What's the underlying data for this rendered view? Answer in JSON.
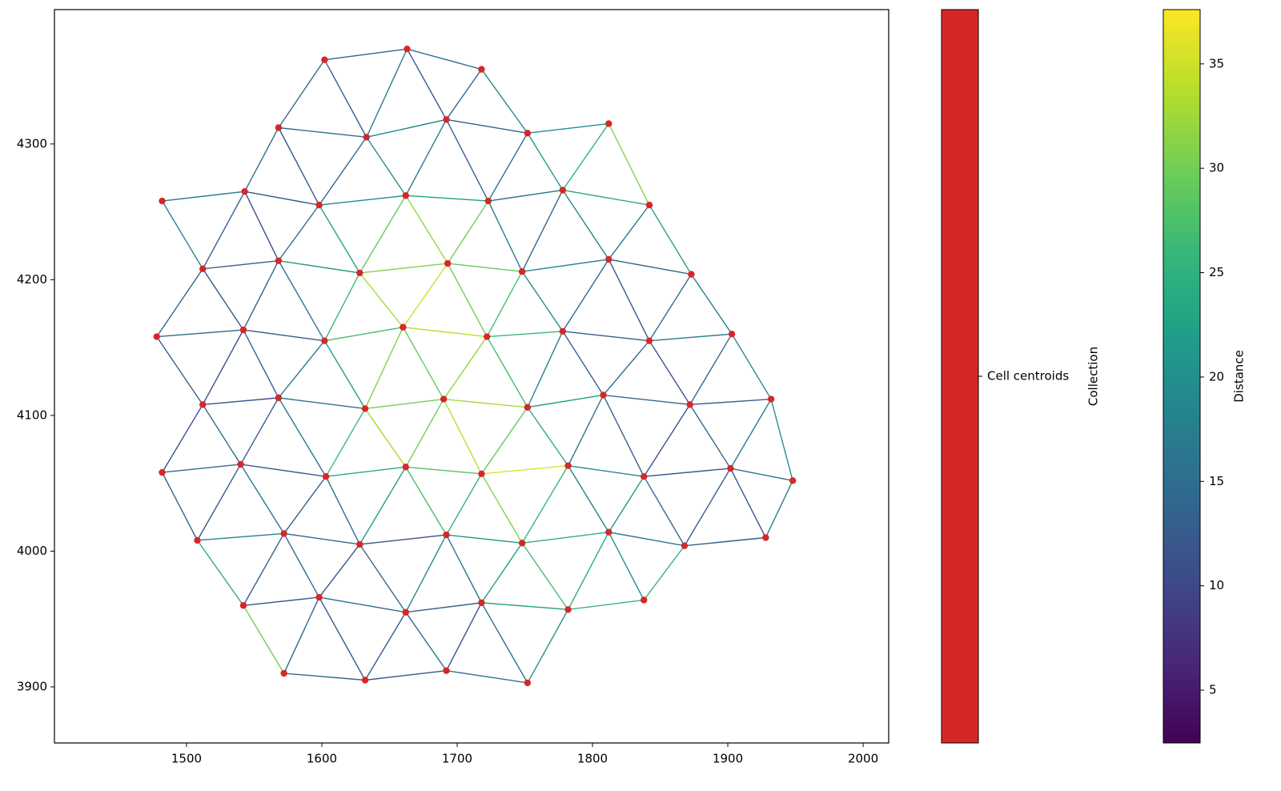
{
  "chart_data": {
    "type": "network",
    "node_color": "#d62728",
    "colormap": "viridis",
    "x": [
      1602,
      1663,
      1718,
      1568,
      1633,
      1692,
      1752,
      1812,
      1482,
      1543,
      1598,
      1662,
      1723,
      1778,
      1842,
      1512,
      1568,
      1628,
      1693,
      1748,
      1812,
      1873,
      1478,
      1542,
      1602,
      1660,
      1722,
      1778,
      1842,
      1903,
      1512,
      1568,
      1632,
      1690,
      1752,
      1808,
      1872,
      1932,
      1482,
      1540,
      1603,
      1662,
      1718,
      1782,
      1838,
      1902,
      1948,
      1508,
      1572,
      1628,
      1692,
      1748,
      1812,
      1868,
      1928,
      1542,
      1598,
      1662,
      1718,
      1782,
      1838,
      1572,
      1632,
      1692,
      1752
    ],
    "y": [
      4362,
      4370,
      4355,
      4312,
      4305,
      4318,
      4308,
      4315,
      4258,
      4265,
      4255,
      4262,
      4258,
      4266,
      4255,
      4208,
      4214,
      4205,
      4212,
      4206,
      4215,
      4204,
      4158,
      4163,
      4155,
      4165,
      4158,
      4162,
      4155,
      4160,
      4108,
      4113,
      4105,
      4112,
      4106,
      4115,
      4108,
      4112,
      4058,
      4064,
      4055,
      4062,
      4057,
      4063,
      4055,
      4061,
      4052,
      4008,
      4013,
      4005,
      4012,
      4006,
      4014,
      4004,
      4010,
      3960,
      3966,
      3955,
      3962,
      3957,
      3964,
      3910,
      3905,
      3912,
      3903
    ],
    "edges": [
      [
        0,
        1,
        14
      ],
      [
        1,
        2,
        16
      ],
      [
        3,
        4,
        15
      ],
      [
        4,
        5,
        18
      ],
      [
        5,
        6,
        13
      ],
      [
        6,
        7,
        20
      ],
      [
        8,
        9,
        17
      ],
      [
        9,
        10,
        12
      ],
      [
        10,
        11,
        19
      ],
      [
        11,
        12,
        22
      ],
      [
        12,
        13,
        16
      ],
      [
        13,
        14,
        24
      ],
      [
        15,
        16,
        13
      ],
      [
        16,
        17,
        21
      ],
      [
        17,
        18,
        31
      ],
      [
        18,
        19,
        29
      ],
      [
        19,
        20,
        18
      ],
      [
        20,
        21,
        15
      ],
      [
        22,
        23,
        14
      ],
      [
        23,
        24,
        12
      ],
      [
        24,
        25,
        27
      ],
      [
        25,
        26,
        34
      ],
      [
        26,
        27,
        26
      ],
      [
        27,
        28,
        13
      ],
      [
        28,
        29,
        17
      ],
      [
        30,
        31,
        11
      ],
      [
        31,
        32,
        16
      ],
      [
        32,
        33,
        30
      ],
      [
        33,
        34,
        33
      ],
      [
        34,
        35,
        22
      ],
      [
        35,
        36,
        14
      ],
      [
        36,
        37,
        12
      ],
      [
        38,
        39,
        15
      ],
      [
        39,
        40,
        13
      ],
      [
        40,
        41,
        24
      ],
      [
        41,
        42,
        28
      ],
      [
        42,
        43,
        36
      ],
      [
        43,
        44,
        19
      ],
      [
        44,
        45,
        12
      ],
      [
        45,
        46,
        16
      ],
      [
        47,
        48,
        18
      ],
      [
        48,
        49,
        14
      ],
      [
        49,
        50,
        11
      ],
      [
        50,
        51,
        21
      ],
      [
        51,
        52,
        25
      ],
      [
        52,
        53,
        17
      ],
      [
        53,
        54,
        13
      ],
      [
        55,
        56,
        12
      ],
      [
        56,
        57,
        15
      ],
      [
        57,
        58,
        13
      ],
      [
        58,
        59,
        23
      ],
      [
        59,
        60,
        26
      ],
      [
        61,
        62,
        14
      ],
      [
        62,
        63,
        12
      ],
      [
        63,
        64,
        16
      ],
      [
        0,
        3,
        15
      ],
      [
        0,
        4,
        13
      ],
      [
        1,
        4,
        17
      ],
      [
        1,
        5,
        12
      ],
      [
        2,
        5,
        14
      ],
      [
        2,
        6,
        19
      ],
      [
        3,
        9,
        16
      ],
      [
        3,
        10,
        12
      ],
      [
        4,
        10,
        14
      ],
      [
        4,
        11,
        20
      ],
      [
        5,
        11,
        17
      ],
      [
        5,
        12,
        13
      ],
      [
        6,
        12,
        15
      ],
      [
        6,
        13,
        22
      ],
      [
        7,
        13,
        25
      ],
      [
        7,
        14,
        31
      ],
      [
        8,
        15,
        18
      ],
      [
        9,
        15,
        13
      ],
      [
        9,
        16,
        11
      ],
      [
        10,
        16,
        15
      ],
      [
        10,
        17,
        23
      ],
      [
        11,
        17,
        29
      ],
      [
        11,
        18,
        32
      ],
      [
        12,
        18,
        30
      ],
      [
        12,
        19,
        17
      ],
      [
        13,
        19,
        14
      ],
      [
        13,
        20,
        19
      ],
      [
        14,
        20,
        16
      ],
      [
        14,
        21,
        23
      ],
      [
        15,
        22,
        14
      ],
      [
        15,
        23,
        12
      ],
      [
        16,
        23,
        13
      ],
      [
        16,
        24,
        16
      ],
      [
        17,
        24,
        26
      ],
      [
        17,
        25,
        33
      ],
      [
        18,
        25,
        35
      ],
      [
        18,
        26,
        30
      ],
      [
        19,
        26,
        27
      ],
      [
        19,
        27,
        20
      ],
      [
        20,
        27,
        14
      ],
      [
        20,
        28,
        12
      ],
      [
        21,
        28,
        15
      ],
      [
        21,
        29,
        18
      ],
      [
        22,
        30,
        13
      ],
      [
        23,
        30,
        11
      ],
      [
        23,
        31,
        14
      ],
      [
        24,
        31,
        17
      ],
      [
        24,
        32,
        22
      ],
      [
        25,
        32,
        31
      ],
      [
        25,
        33,
        29
      ],
      [
        26,
        33,
        32
      ],
      [
        26,
        34,
        27
      ],
      [
        27,
        34,
        18
      ],
      [
        27,
        35,
        13
      ],
      [
        28,
        35,
        15
      ],
      [
        28,
        36,
        12
      ],
      [
        29,
        36,
        14
      ],
      [
        29,
        37,
        19
      ],
      [
        30,
        38,
        12
      ],
      [
        30,
        39,
        15
      ],
      [
        31,
        39,
        13
      ],
      [
        31,
        40,
        16
      ],
      [
        32,
        40,
        26
      ],
      [
        32,
        41,
        33
      ],
      [
        33,
        41,
        30
      ],
      [
        33,
        42,
        34
      ],
      [
        34,
        42,
        29
      ],
      [
        34,
        43,
        24
      ],
      [
        35,
        43,
        16
      ],
      [
        35,
        44,
        13
      ],
      [
        36,
        44,
        11
      ],
      [
        36,
        45,
        14
      ],
      [
        37,
        45,
        17
      ],
      [
        37,
        46,
        20
      ],
      [
        38,
        47,
        14
      ],
      [
        39,
        47,
        12
      ],
      [
        39,
        48,
        16
      ],
      [
        40,
        48,
        13
      ],
      [
        40,
        49,
        15
      ],
      [
        41,
        49,
        22
      ],
      [
        41,
        50,
        27
      ],
      [
        42,
        50,
        25
      ],
      [
        42,
        51,
        31
      ],
      [
        43,
        51,
        26
      ],
      [
        43,
        52,
        18
      ],
      [
        44,
        52,
        21
      ],
      [
        44,
        53,
        15
      ],
      [
        45,
        53,
        13
      ],
      [
        45,
        54,
        12
      ],
      [
        46,
        54,
        18
      ],
      [
        47,
        55,
        24
      ],
      [
        48,
        55,
        13
      ],
      [
        48,
        56,
        15
      ],
      [
        49,
        56,
        12
      ],
      [
        49,
        57,
        14
      ],
      [
        50,
        57,
        19
      ],
      [
        50,
        58,
        16
      ],
      [
        51,
        58,
        22
      ],
      [
        51,
        59,
        27
      ],
      [
        52,
        59,
        24
      ],
      [
        52,
        60,
        20
      ],
      [
        53,
        60,
        26
      ],
      [
        55,
        61,
        30
      ],
      [
        56,
        61,
        14
      ],
      [
        56,
        62,
        12
      ],
      [
        57,
        62,
        13
      ],
      [
        57,
        63,
        15
      ],
      [
        58,
        63,
        11
      ],
      [
        58,
        64,
        16
      ],
      [
        59,
        64,
        21
      ]
    ],
    "xlim": [
      1402.4,
      2018.9
    ],
    "xticks": [
      1500,
      1600,
      1700,
      1800,
      1900,
      2000
    ],
    "ylim": [
      3858.7,
      4399
    ],
    "yticks": [
      3900,
      4000,
      4100,
      4200,
      4300
    ],
    "collection_label": "Cell centroids",
    "collection_title": "Collection",
    "colorbar_label": "Distance",
    "clim": [
      2.47,
      37.6
    ],
    "cticks": [
      5,
      10,
      15,
      20,
      25,
      30,
      35
    ]
  }
}
